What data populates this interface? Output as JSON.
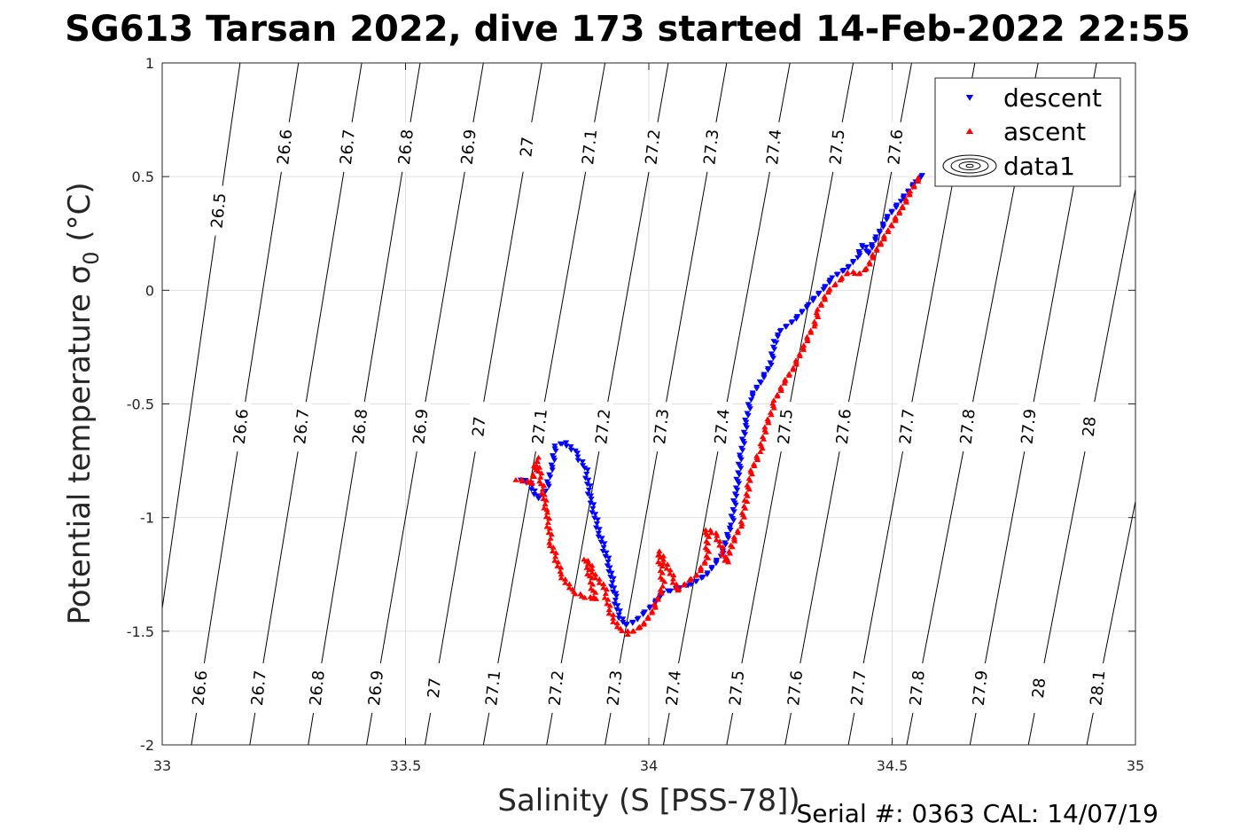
{
  "footer": "Serial #: 0363  CAL: 14/07/19",
  "chart_data": {
    "type": "scatter",
    "title": "SG613 Tarsan 2022, dive 173 started 14-Feb-2022 22:55",
    "xlabel": "Salinity (S [PSS-78])",
    "ylabel": "Potential temperature σ",
    "ylabel_sub": "0",
    "ylabel_unit": " (°C)",
    "xlim": [
      33,
      35
    ],
    "ylim": [
      -2,
      1
    ],
    "xticks": [
      33,
      33.5,
      34,
      34.5,
      35
    ],
    "xtick_labels": [
      "33",
      "33.5",
      "34",
      "34.5",
      "35"
    ],
    "yticks": [
      -2,
      -1.5,
      -1,
      -0.5,
      0,
      0.5,
      1
    ],
    "ytick_labels": [
      "-2",
      "-1.5",
      "-1",
      "-0.5",
      "0",
      "0.5",
      "1"
    ],
    "grid": true,
    "legend_position": "top-right",
    "legend": [
      {
        "name": "descent",
        "color": "#0000ff",
        "marker": "triangle-down"
      },
      {
        "name": "ascent",
        "color": "#ff0000",
        "marker": "triangle-up"
      },
      {
        "name": "data1",
        "color": "#000000",
        "marker": "contour"
      }
    ],
    "series": [
      {
        "name": "descent",
        "color": "#0000ff",
        "marker": "triangle-down",
        "path": [
          [
            33.74,
            -0.83
          ],
          [
            33.76,
            -0.86
          ],
          [
            33.77,
            -0.92
          ],
          [
            33.79,
            -0.88
          ],
          [
            33.8,
            -0.78
          ],
          [
            33.81,
            -0.68
          ],
          [
            33.83,
            -0.67
          ],
          [
            33.85,
            -0.72
          ],
          [
            33.87,
            -0.78
          ],
          [
            33.88,
            -0.92
          ],
          [
            33.9,
            -1.08
          ],
          [
            33.92,
            -1.22
          ],
          [
            33.93,
            -1.35
          ],
          [
            33.94,
            -1.44
          ],
          [
            33.95,
            -1.47
          ],
          [
            33.97,
            -1.46
          ],
          [
            33.99,
            -1.42
          ],
          [
            34.01,
            -1.38
          ],
          [
            34.03,
            -1.33
          ],
          [
            34.06,
            -1.31
          ],
          [
            34.09,
            -1.29
          ],
          [
            34.12,
            -1.25
          ],
          [
            34.15,
            -1.16
          ],
          [
            34.17,
            -1.03
          ],
          [
            34.18,
            -0.88
          ],
          [
            34.19,
            -0.72
          ],
          [
            34.2,
            -0.58
          ],
          [
            34.21,
            -0.47
          ],
          [
            34.23,
            -0.4
          ],
          [
            34.25,
            -0.33
          ],
          [
            34.26,
            -0.22
          ],
          [
            34.27,
            -0.18
          ],
          [
            34.3,
            -0.13
          ],
          [
            34.33,
            -0.06
          ],
          [
            34.36,
            0.01
          ],
          [
            34.38,
            0.06
          ],
          [
            34.41,
            0.1
          ],
          [
            34.43,
            0.15
          ],
          [
            34.44,
            0.2
          ],
          [
            34.45,
            0.16
          ],
          [
            34.47,
            0.24
          ],
          [
            34.49,
            0.32
          ],
          [
            34.52,
            0.4
          ],
          [
            34.55,
            0.48
          ],
          [
            34.57,
            0.52
          ]
        ]
      },
      {
        "name": "ascent",
        "color": "#ff0000",
        "marker": "triangle-up",
        "path": [
          [
            33.73,
            -0.83
          ],
          [
            33.76,
            -0.85
          ],
          [
            33.77,
            -0.74
          ],
          [
            33.78,
            -0.85
          ],
          [
            33.79,
            -0.98
          ],
          [
            33.8,
            -1.12
          ],
          [
            33.82,
            -1.25
          ],
          [
            33.84,
            -1.32
          ],
          [
            33.87,
            -1.35
          ],
          [
            33.89,
            -1.36
          ],
          [
            33.87,
            -1.18
          ],
          [
            33.89,
            -1.25
          ],
          [
            33.91,
            -1.32
          ],
          [
            33.92,
            -1.42
          ],
          [
            33.94,
            -1.49
          ],
          [
            33.96,
            -1.51
          ],
          [
            33.99,
            -1.47
          ],
          [
            34.01,
            -1.4
          ],
          [
            34.03,
            -1.3
          ],
          [
            34.02,
            -1.15
          ],
          [
            34.04,
            -1.22
          ],
          [
            34.06,
            -1.32
          ],
          [
            34.08,
            -1.28
          ],
          [
            34.1,
            -1.25
          ],
          [
            34.12,
            -1.18
          ],
          [
            34.12,
            -1.05
          ],
          [
            34.14,
            -1.08
          ],
          [
            34.16,
            -1.2
          ],
          [
            34.17,
            -1.12
          ],
          [
            34.19,
            -1.03
          ],
          [
            34.2,
            -0.92
          ],
          [
            34.21,
            -0.8
          ],
          [
            34.23,
            -0.7
          ],
          [
            34.24,
            -0.6
          ],
          [
            34.25,
            -0.55
          ],
          [
            34.26,
            -0.48
          ],
          [
            34.28,
            -0.4
          ],
          [
            34.3,
            -0.33
          ],
          [
            34.32,
            -0.24
          ],
          [
            34.34,
            -0.15
          ],
          [
            34.35,
            -0.08
          ],
          [
            34.37,
            0.0
          ],
          [
            34.39,
            0.04
          ],
          [
            34.41,
            0.08
          ],
          [
            34.43,
            0.07
          ],
          [
            34.45,
            0.1
          ],
          [
            34.46,
            0.15
          ],
          [
            34.48,
            0.22
          ],
          [
            34.5,
            0.29
          ],
          [
            34.52,
            0.36
          ],
          [
            34.54,
            0.44
          ],
          [
            34.56,
            0.51
          ]
        ]
      }
    ],
    "contours": {
      "levels": [
        26.5,
        26.6,
        26.7,
        26.8,
        26.9,
        27,
        27.1,
        27.2,
        27.3,
        27.4,
        27.5,
        27.6,
        27.7,
        27.8,
        27.9,
        28,
        28.1
      ],
      "labels": [
        "26.5",
        "26.6",
        "26.7",
        "26.8",
        "26.9",
        "27",
        "27.1",
        "27.2",
        "27.3",
        "27.4",
        "27.5",
        "27.6",
        "27.7",
        "27.8",
        "27.9",
        "28",
        "28.1"
      ],
      "salinity_at_bottom": [
        32.96,
        33.06,
        33.18,
        33.3,
        33.42,
        33.54,
        33.66,
        33.79,
        33.91,
        34.03,
        34.16,
        34.28,
        34.41,
        34.53,
        34.66,
        34.78,
        34.9
      ],
      "salinity_at_top": [
        33.16,
        33.28,
        33.41,
        33.53,
        33.66,
        33.78,
        33.91,
        34.04,
        34.16,
        34.29,
        34.42,
        34.54,
        34.67,
        34.8,
        34.92,
        35.05,
        35.18
      ],
      "label_rows": [
        {
          "theta": 0.35,
          "levels": [
            26.5
          ]
        },
        {
          "theta": 0.63,
          "levels": [
            26.6,
            26.7,
            26.8,
            26.9,
            27,
            27.1,
            27.2,
            27.3,
            27.4,
            27.5,
            27.6,
            27.7
          ]
        },
        {
          "theta": -0.6,
          "levels": [
            26.6,
            26.7,
            26.8,
            26.9,
            27,
            27.1,
            27.2,
            27.3,
            27.4,
            27.5,
            27.6,
            27.7,
            27.8,
            27.9,
            28,
            28.1
          ]
        },
        {
          "theta": -1.75,
          "levels": [
            26.6,
            26.7,
            26.8,
            26.9,
            27,
            27.1,
            27.2,
            27.3,
            27.4,
            27.5,
            27.6,
            27.7,
            27.8,
            27.9,
            28,
            28.1
          ]
        }
      ]
    }
  }
}
